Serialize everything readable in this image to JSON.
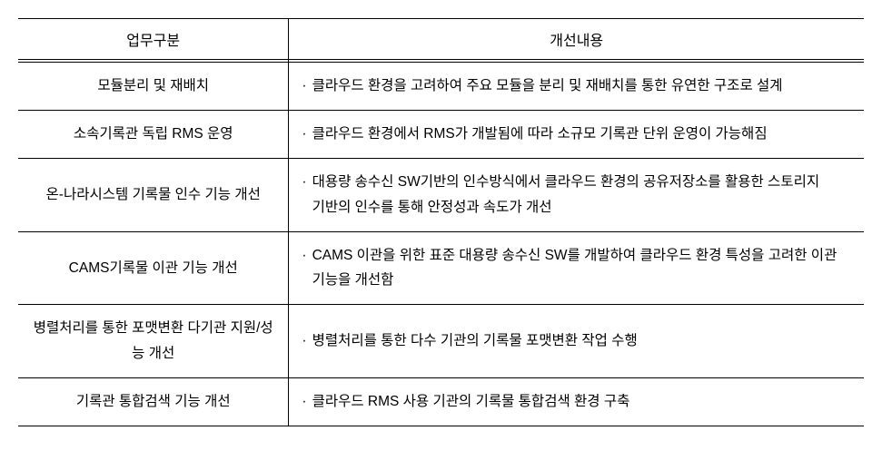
{
  "table": {
    "headers": {
      "col1": "업무구분",
      "col2": "개선내용"
    },
    "rows": [
      {
        "category": "모듈분리 및 재배치",
        "desc": "클라우드 환경을 고려하여 주요 모듈을 분리 및 재배치를 통한 유연한 구조로 설계"
      },
      {
        "category": "소속기록관 독립 RMS 운영",
        "desc": "클라우드 환경에서 RMS가 개발됨에 따라 소규모 기록관 단위 운영이 가능해짐"
      },
      {
        "category": "온-나라시스템 기록물 인수 기능 개선",
        "desc": "대용량 송수신 SW기반의 인수방식에서 클라우드 환경의 공유저장소를 활용한 스토리지 기반의 인수를 통해 안정성과 속도가 개선"
      },
      {
        "category": "CAMS기록물 이관 기능 개선",
        "desc": "CAMS 이관을 위한 표준 대용량 송수신 SW를 개발하여 클라우드 환경 특성을 고려한 이관 기능을 개선함"
      },
      {
        "category": "병렬처리를 통한 포맷변환 다기관 지원/성능 개선",
        "desc": "병렬처리를 통한 다수 기관의 기록물 포맷변환 작업 수행"
      },
      {
        "category": "기록관 통합검색 기능 개선",
        "desc": "클라우드 RMS 사용 기관의 기록물 통합검색 환경 구축"
      }
    ],
    "bullet": "·"
  }
}
